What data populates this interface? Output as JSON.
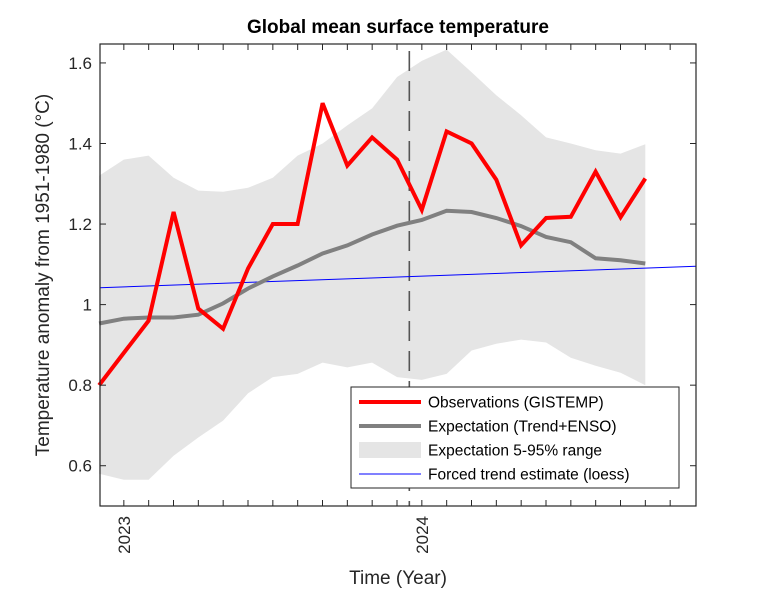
{
  "chart_data": {
    "type": "line",
    "title": "Global mean surface temperature",
    "xlabel": "Time (Year)",
    "ylabel": "Temperature anomaly from 1951-1980 (°C)",
    "xlim": [
      2022.92,
      2024.92
    ],
    "ylim": [
      0.5,
      1.647
    ],
    "grid": false,
    "x_ticks": [
      {
        "value": 2023,
        "label": "2023"
      },
      {
        "value": 2024,
        "label": "2024"
      }
    ],
    "x_minor_tick_step_months": 1,
    "y_ticks": [
      {
        "value": 0.6,
        "label": "0.6"
      },
      {
        "value": 0.8,
        "label": "0.8"
      },
      {
        "value": 1.0,
        "label": "1"
      },
      {
        "value": 1.2,
        "label": "1.2"
      },
      {
        "value": 1.4,
        "label": "1.4"
      },
      {
        "value": 1.6,
        "label": "1.6"
      }
    ],
    "x": [
      2022.917,
      2023.0,
      2023.083,
      2023.167,
      2023.25,
      2023.333,
      2023.417,
      2023.5,
      2023.583,
      2023.667,
      2023.75,
      2023.833,
      2023.917,
      2024.0,
      2024.083,
      2024.167,
      2024.25,
      2024.333,
      2024.417,
      2024.5,
      2024.583,
      2024.667,
      2024.75
    ],
    "series": [
      {
        "name": "Observations (GISTEMP)",
        "kind": "line",
        "color": "#ff0000",
        "values": [
          0.8,
          0.88,
          0.96,
          1.23,
          0.99,
          0.94,
          1.09,
          1.2,
          1.2,
          1.5,
          1.345,
          1.415,
          1.36,
          1.235,
          1.43,
          1.4,
          1.31,
          1.147,
          1.215,
          1.218,
          1.33,
          1.217,
          1.313
        ]
      },
      {
        "name": "Expectation (Trend+ENSO)",
        "kind": "line",
        "color": "#808080",
        "values": [
          0.953,
          0.965,
          0.968,
          0.968,
          0.975,
          1.003,
          1.04,
          1.07,
          1.097,
          1.127,
          1.147,
          1.174,
          1.196,
          1.21,
          1.233,
          1.23,
          1.215,
          1.195,
          1.168,
          1.155,
          1.115,
          1.11,
          1.102
        ]
      },
      {
        "name": "Expectation 5-95% range",
        "kind": "band",
        "color": "#e5e5e5",
        "lower": [
          0.58,
          0.565,
          0.565,
          0.625,
          0.67,
          0.712,
          0.78,
          0.82,
          0.828,
          0.856,
          0.844,
          0.856,
          0.82,
          0.813,
          0.828,
          0.886,
          0.903,
          0.913,
          0.906,
          0.868,
          0.848,
          0.831,
          0.8
        ],
        "upper": [
          1.32,
          1.36,
          1.37,
          1.315,
          1.283,
          1.28,
          1.29,
          1.315,
          1.37,
          1.4,
          1.445,
          1.487,
          1.565,
          1.605,
          1.633,
          1.577,
          1.52,
          1.47,
          1.415,
          1.4,
          1.383,
          1.375,
          1.398
        ]
      },
      {
        "name": "Forced trend estimate (loess)",
        "kind": "line",
        "color": "#0000ff",
        "x": [
          2022.92,
          2024.92
        ],
        "values": [
          1.042,
          1.095
        ]
      }
    ],
    "annotations": [
      {
        "type": "vertical-dashed-line",
        "x": 2023.958,
        "color": "#555555"
      }
    ],
    "legend": {
      "placement": "bottom-right",
      "entries": [
        {
          "label": "Observations (GISTEMP)",
          "kind": "line",
          "color": "#ff0000"
        },
        {
          "label": "Expectation (Trend+ENSO)",
          "kind": "line",
          "color": "#808080"
        },
        {
          "label": "Expectation 5-95% range",
          "kind": "patch",
          "color": "#e5e5e5"
        },
        {
          "label": "Forced trend estimate (loess)",
          "kind": "thin-line",
          "color": "#0000ff"
        }
      ]
    }
  }
}
